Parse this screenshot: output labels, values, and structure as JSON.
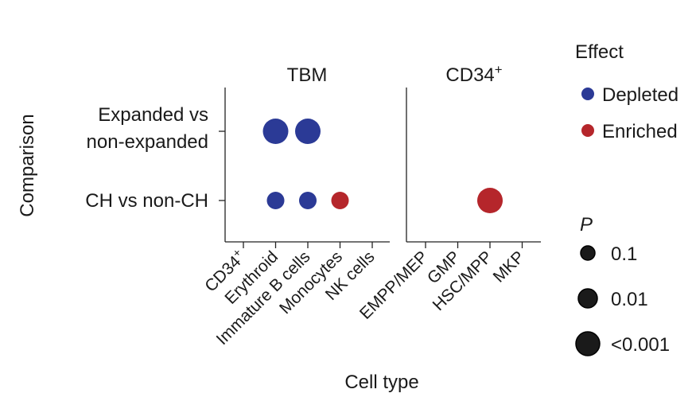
{
  "chart_data": {
    "type": "scatter",
    "subtype": "dot-plot",
    "ylabel": "Comparison",
    "xlabel": "Cell type",
    "panels": [
      {
        "title": "TBM",
        "categories": [
          "CD34⁺",
          "Erythroid",
          "Immature B cells",
          "Monocytes",
          "NK cells"
        ]
      },
      {
        "title": "CD34⁺",
        "categories": [
          "EMPP/MEP",
          "GMP",
          "HSC/MPP",
          "MKP"
        ]
      }
    ],
    "rows": [
      "Expanded vs\nnon-expanded",
      "CH vs non-CH"
    ],
    "points": [
      {
        "panel": 0,
        "category": "Erythroid",
        "row": "Expanded vs\nnon-expanded",
        "effect": "Depleted",
        "p": "<0.001"
      },
      {
        "panel": 0,
        "category": "Immature B cells",
        "row": "Expanded vs\nnon-expanded",
        "effect": "Depleted",
        "p": "<0.001"
      },
      {
        "panel": 0,
        "category": "Erythroid",
        "row": "CH vs non-CH",
        "effect": "Depleted",
        "p": "0.01"
      },
      {
        "panel": 0,
        "category": "Immature B cells",
        "row": "CH vs non-CH",
        "effect": "Depleted",
        "p": "0.01"
      },
      {
        "panel": 0,
        "category": "Monocytes",
        "row": "CH vs non-CH",
        "effect": "Enriched",
        "p": "0.01"
      },
      {
        "panel": 1,
        "category": "HSC/MPP",
        "row": "CH vs non-CH",
        "effect": "Enriched",
        "p": "<0.001"
      }
    ],
    "legend_effect": {
      "title": "Effect",
      "items": [
        {
          "label": "Depleted",
          "color": "#2b3a96"
        },
        {
          "label": "Enriched",
          "color": "#b5262b"
        }
      ]
    },
    "legend_size": {
      "title": "P",
      "items": [
        "0.1",
        "0.01",
        "<0.001"
      ]
    },
    "legend_placement": "right",
    "grid": false
  }
}
